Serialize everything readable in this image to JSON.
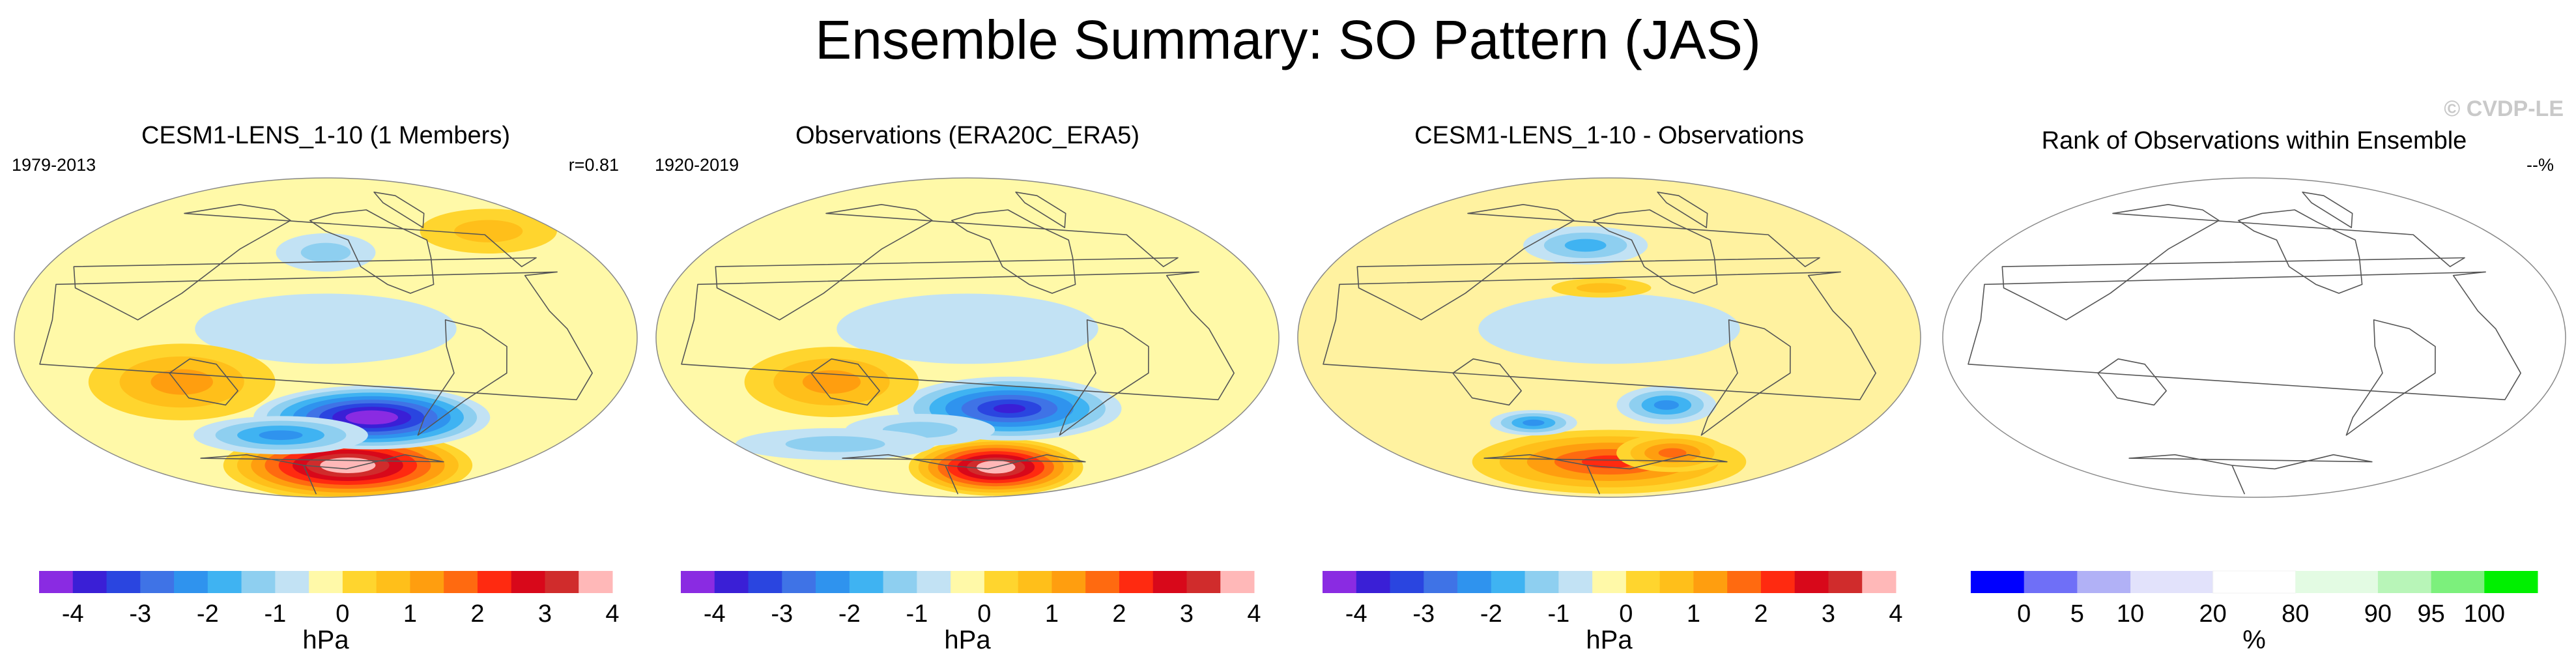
{
  "page": {
    "title": "Ensemble Summary: SO Pattern (JAS)",
    "watermark": "© CVDP-LE"
  },
  "colors": {
    "hpa_palette": [
      "#8a2be2",
      "#3a1fd6",
      "#2a45e0",
      "#3f73e6",
      "#2f93ee",
      "#3fb3f2",
      "#8ecff0",
      "#c2e2f4",
      "#fff9a8",
      "#ffd52e",
      "#ffbf1a",
      "#ff9e0f",
      "#ff6a10",
      "#ff2a10",
      "#d8081a",
      "#d02c2c",
      "#ffb8b8"
    ],
    "rank_palette": [
      "#0000ff",
      "#6f6ff7",
      "#b1b1f6",
      "#e2e2fb",
      "#ffffff",
      "#e3fbe3",
      "#b8f5b8",
      "#7cf07c",
      "#00f000"
    ],
    "land_outline": "#555555"
  },
  "panels": [
    {
      "title": "CESM1-LENS_1-10 (1 Members)",
      "left_label": "1979-2013",
      "right_label": "r=0.81",
      "colorbar_key": "hpa",
      "features": [
        {
          "kind": "positive",
          "lon": -120,
          "lat": -72,
          "rx": 0.2,
          "ry": 0.11,
          "level": 4.5
        },
        {
          "kind": "negative",
          "lon": -115,
          "lat": -45,
          "rx": 0.19,
          "ry": 0.1,
          "level": -4.5
        },
        {
          "kind": "negative",
          "lon": 170,
          "lat": -55,
          "rx": 0.14,
          "ry": 0.06,
          "level": -2.1
        },
        {
          "kind": "positive",
          "lon": 120,
          "lat": -25,
          "rx": 0.15,
          "ry": 0.12,
          "level": 1.3
        },
        {
          "kind": "negative",
          "lon": -150,
          "lat": 48,
          "rx": 0.08,
          "ry": 0.06,
          "level": -1.2
        },
        {
          "kind": "positive",
          "lon": 10,
          "lat": 60,
          "rx": 0.11,
          "ry": 0.07,
          "level": 1.2
        }
      ]
    },
    {
      "title": "Observations (ERA20C_ERA5)",
      "left_label": "1920-2019",
      "right_label": "",
      "colorbar_key": "hpa",
      "features": [
        {
          "kind": "positive",
          "lon": -110,
          "lat": -73,
          "rx": 0.14,
          "ry": 0.09,
          "level": 4.3
        },
        {
          "kind": "negative",
          "lon": -120,
          "lat": -40,
          "rx": 0.18,
          "ry": 0.1,
          "level": -3.5
        },
        {
          "kind": "positive",
          "lon": 125,
          "lat": -25,
          "rx": 0.14,
          "ry": 0.11,
          "level": 1.4
        },
        {
          "kind": "negative",
          "lon": 170,
          "lat": -52,
          "rx": 0.12,
          "ry": 0.05,
          "level": -1.2
        },
        {
          "kind": "negative",
          "lon": 80,
          "lat": -60,
          "rx": 0.16,
          "ry": 0.05,
          "level": -1.1
        }
      ]
    },
    {
      "title": "CESM1-LENS_1-10 - Observations",
      "left_label": "",
      "right_label": "",
      "colorbar_key": "hpa",
      "features": [
        {
          "kind": "positive",
          "lon": -150,
          "lat": -70,
          "rx": 0.22,
          "ry": 0.1,
          "level": 2.5
        },
        {
          "kind": "positive",
          "lon": -80,
          "lat": -65,
          "rx": 0.09,
          "ry": 0.06,
          "level": 2.1
        },
        {
          "kind": "negative",
          "lon": -110,
          "lat": -38,
          "rx": 0.08,
          "ry": 0.06,
          "level": -2.1
        },
        {
          "kind": "negative",
          "lon": 150,
          "lat": -48,
          "rx": 0.07,
          "ry": 0.04,
          "level": -1.8
        },
        {
          "kind": "negative",
          "lon": -170,
          "lat": 52,
          "rx": 0.1,
          "ry": 0.06,
          "level": -1.4
        },
        {
          "kind": "positive",
          "lon": -155,
          "lat": 28,
          "rx": 0.08,
          "ry": 0.03,
          "level": 1.1
        }
      ]
    },
    {
      "title": "Rank of Observations within Ensemble",
      "left_label": "",
      "right_label": "--%",
      "colorbar_key": "rank",
      "features": []
    }
  ],
  "chart_data": [
    {
      "type": "heatmap",
      "title": "CESM1-LENS_1-10 (1 Members)",
      "period": "1979-2013",
      "pattern_correlation": "r=0.81",
      "units": "hPa",
      "color_levels": [
        -4.5,
        -4,
        -3.5,
        -3,
        -2.5,
        -2,
        -1.5,
        -1,
        -0.5,
        0.5,
        1,
        1.5,
        2,
        2.5,
        3,
        3.5,
        4,
        4.5
      ],
      "colorbar_tick_labels": [
        "-4",
        "-3",
        "-2",
        "-1",
        "0",
        "1",
        "2",
        "3",
        "4"
      ],
      "colorbar_label": "hPa",
      "extrema": {
        "max": 4.5,
        "min": -4.5
      }
    },
    {
      "type": "heatmap",
      "title": "Observations (ERA20C_ERA5)",
      "period": "1920-2019",
      "units": "hPa",
      "colorbar_tick_labels": [
        "-4",
        "-3",
        "-2",
        "-1",
        "0",
        "1",
        "2",
        "3",
        "4"
      ],
      "colorbar_label": "hPa",
      "extrema": {
        "max": 4.3,
        "min": -3.5
      }
    },
    {
      "type": "heatmap",
      "title": "CESM1-LENS_1-10 - Observations",
      "units": "hPa",
      "colorbar_tick_labels": [
        "-4",
        "-3",
        "-2",
        "-1",
        "0",
        "1",
        "2",
        "3",
        "4"
      ],
      "colorbar_label": "hPa",
      "extrema": {
        "max": 2.5,
        "min": -2.1
      }
    },
    {
      "type": "heatmap",
      "title": "Rank of Observations within Ensemble",
      "value_label": "--%",
      "units": "%",
      "color_levels": [
        0,
        5,
        10,
        20,
        80,
        90,
        95,
        100
      ],
      "colorbar_tick_labels": [
        "0",
        "5",
        "10",
        "20",
        "80",
        "90",
        "95",
        "100"
      ],
      "colorbar_label": "%"
    }
  ]
}
